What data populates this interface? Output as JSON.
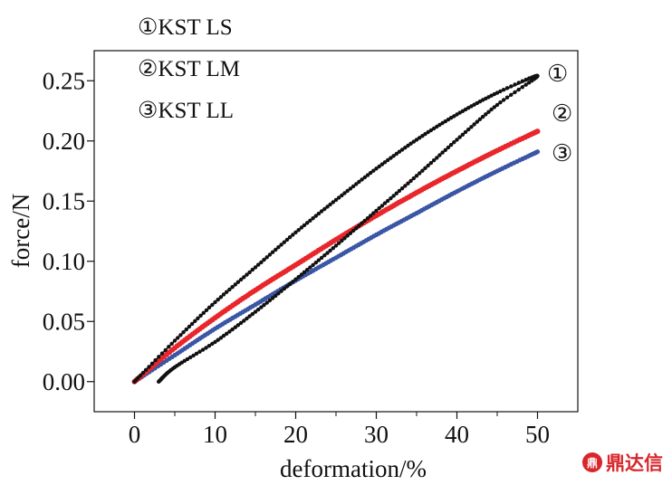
{
  "chart_data": {
    "type": "line",
    "xlabel": "deformation/%",
    "ylabel": "force/N",
    "xlim": [
      -5,
      55
    ],
    "ylim": [
      -0.025,
      0.275
    ],
    "x_ticks": [
      0,
      10,
      20,
      30,
      40,
      50
    ],
    "y_ticks": [
      0.0,
      0.05,
      0.1,
      0.15,
      0.2,
      0.25
    ],
    "x_tick_labels": [
      "0",
      "10",
      "20",
      "30",
      "40",
      "50"
    ],
    "y_tick_labels": [
      "0.00",
      "0.05",
      "0.10",
      "0.15",
      "0.20",
      "0.25"
    ],
    "legend_position": "top-left",
    "legend": [
      {
        "marker": "①",
        "text": "KST  LS"
      },
      {
        "marker": "②",
        "text": "KST LM"
      },
      {
        "marker": "③",
        "text": "KST  LL"
      }
    ],
    "series": [
      {
        "name": "KST  LS",
        "label": "①",
        "color": "#111111",
        "loop": true,
        "x": [
          0,
          5,
          10,
          15,
          20,
          25,
          30,
          35,
          40,
          45,
          50,
          45,
          40,
          35,
          30,
          25,
          20,
          15,
          10,
          5,
          3
        ],
        "y": [
          0.0,
          0.034,
          0.066,
          0.095,
          0.124,
          0.151,
          0.177,
          0.201,
          0.222,
          0.24,
          0.254,
          0.23,
          0.201,
          0.171,
          0.142,
          0.113,
          0.085,
          0.058,
          0.033,
          0.012,
          0.0
        ]
      },
      {
        "name": "KST LM",
        "label": "②",
        "color": "#e8262b",
        "x": [
          0,
          5,
          10,
          15,
          20,
          25,
          30,
          35,
          40,
          45,
          50
        ],
        "y": [
          0.0,
          0.028,
          0.053,
          0.076,
          0.097,
          0.118,
          0.138,
          0.157,
          0.175,
          0.192,
          0.208
        ]
      },
      {
        "name": "KST  LL",
        "label": "③",
        "color": "#3a56a4",
        "x": [
          0,
          5,
          10,
          15,
          20,
          25,
          30,
          35,
          40,
          45,
          50
        ],
        "y": [
          0.0,
          0.022,
          0.044,
          0.064,
          0.084,
          0.103,
          0.122,
          0.14,
          0.158,
          0.175,
          0.191
        ]
      }
    ]
  },
  "watermark": {
    "logo": "鼎",
    "text": "鼎达信"
  }
}
